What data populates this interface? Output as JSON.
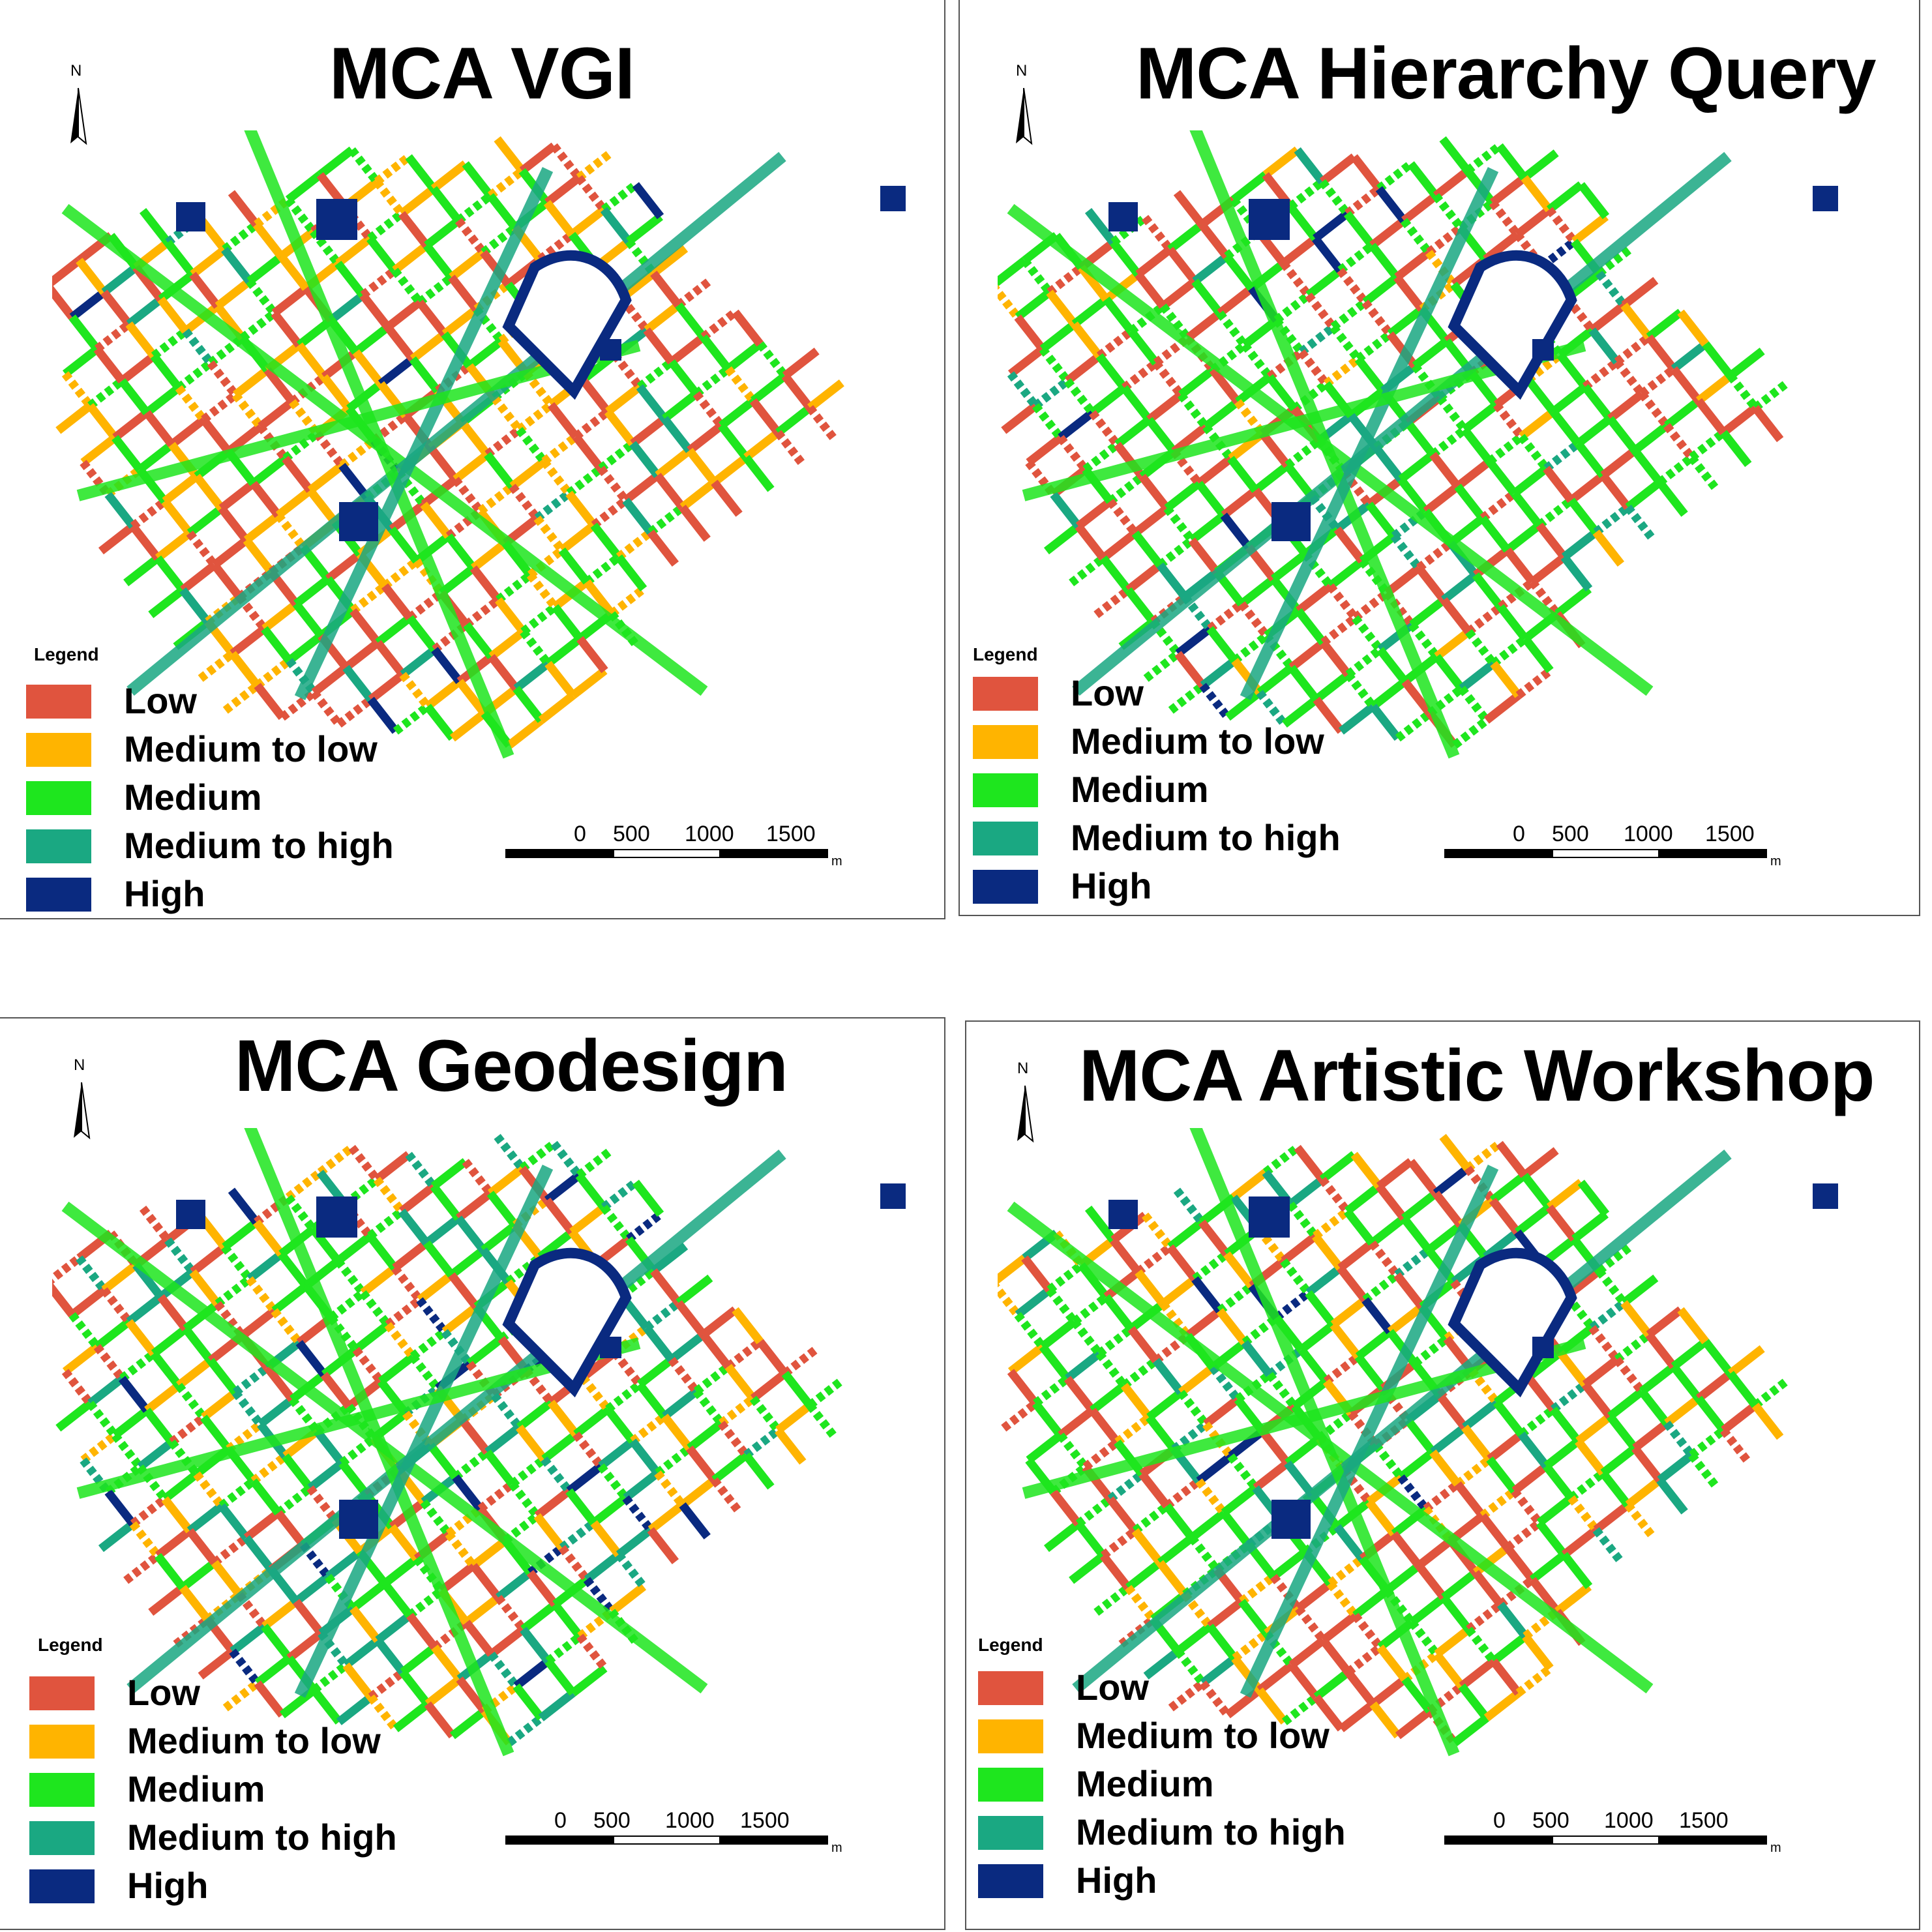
{
  "colors": {
    "low": "#e0543e",
    "medium_to_low": "#ffb400",
    "medium": "#1ee61e",
    "medium_to_high": "#1aa882",
    "high": "#0a2a80"
  },
  "legend_title": "Legend",
  "legend": [
    {
      "key": "low",
      "label": "Low"
    },
    {
      "key": "medium_to_low",
      "label": "Medium to low"
    },
    {
      "key": "medium",
      "label": "Medium"
    },
    {
      "key": "medium_to_high",
      "label": "Medium to high"
    },
    {
      "key": "high",
      "label": "High"
    }
  ],
  "north_label": "N",
  "scale": {
    "ticks": [
      "0",
      "500",
      "1000",
      "1500"
    ],
    "unit": "m"
  },
  "panels": [
    {
      "title": "MCA VGI",
      "legend_title": "Legend",
      "seed": 11
    },
    {
      "title": "MCA Hierarchy Query",
      "legend_title": "Legend",
      "seed": 23
    },
    {
      "title": "MCA Geodesign",
      "legend_title": "Legend",
      "seed": 37
    },
    {
      "title": "MCA Artistic Workshop",
      "legend_title": "Legend",
      "seed": 53
    }
  ]
}
